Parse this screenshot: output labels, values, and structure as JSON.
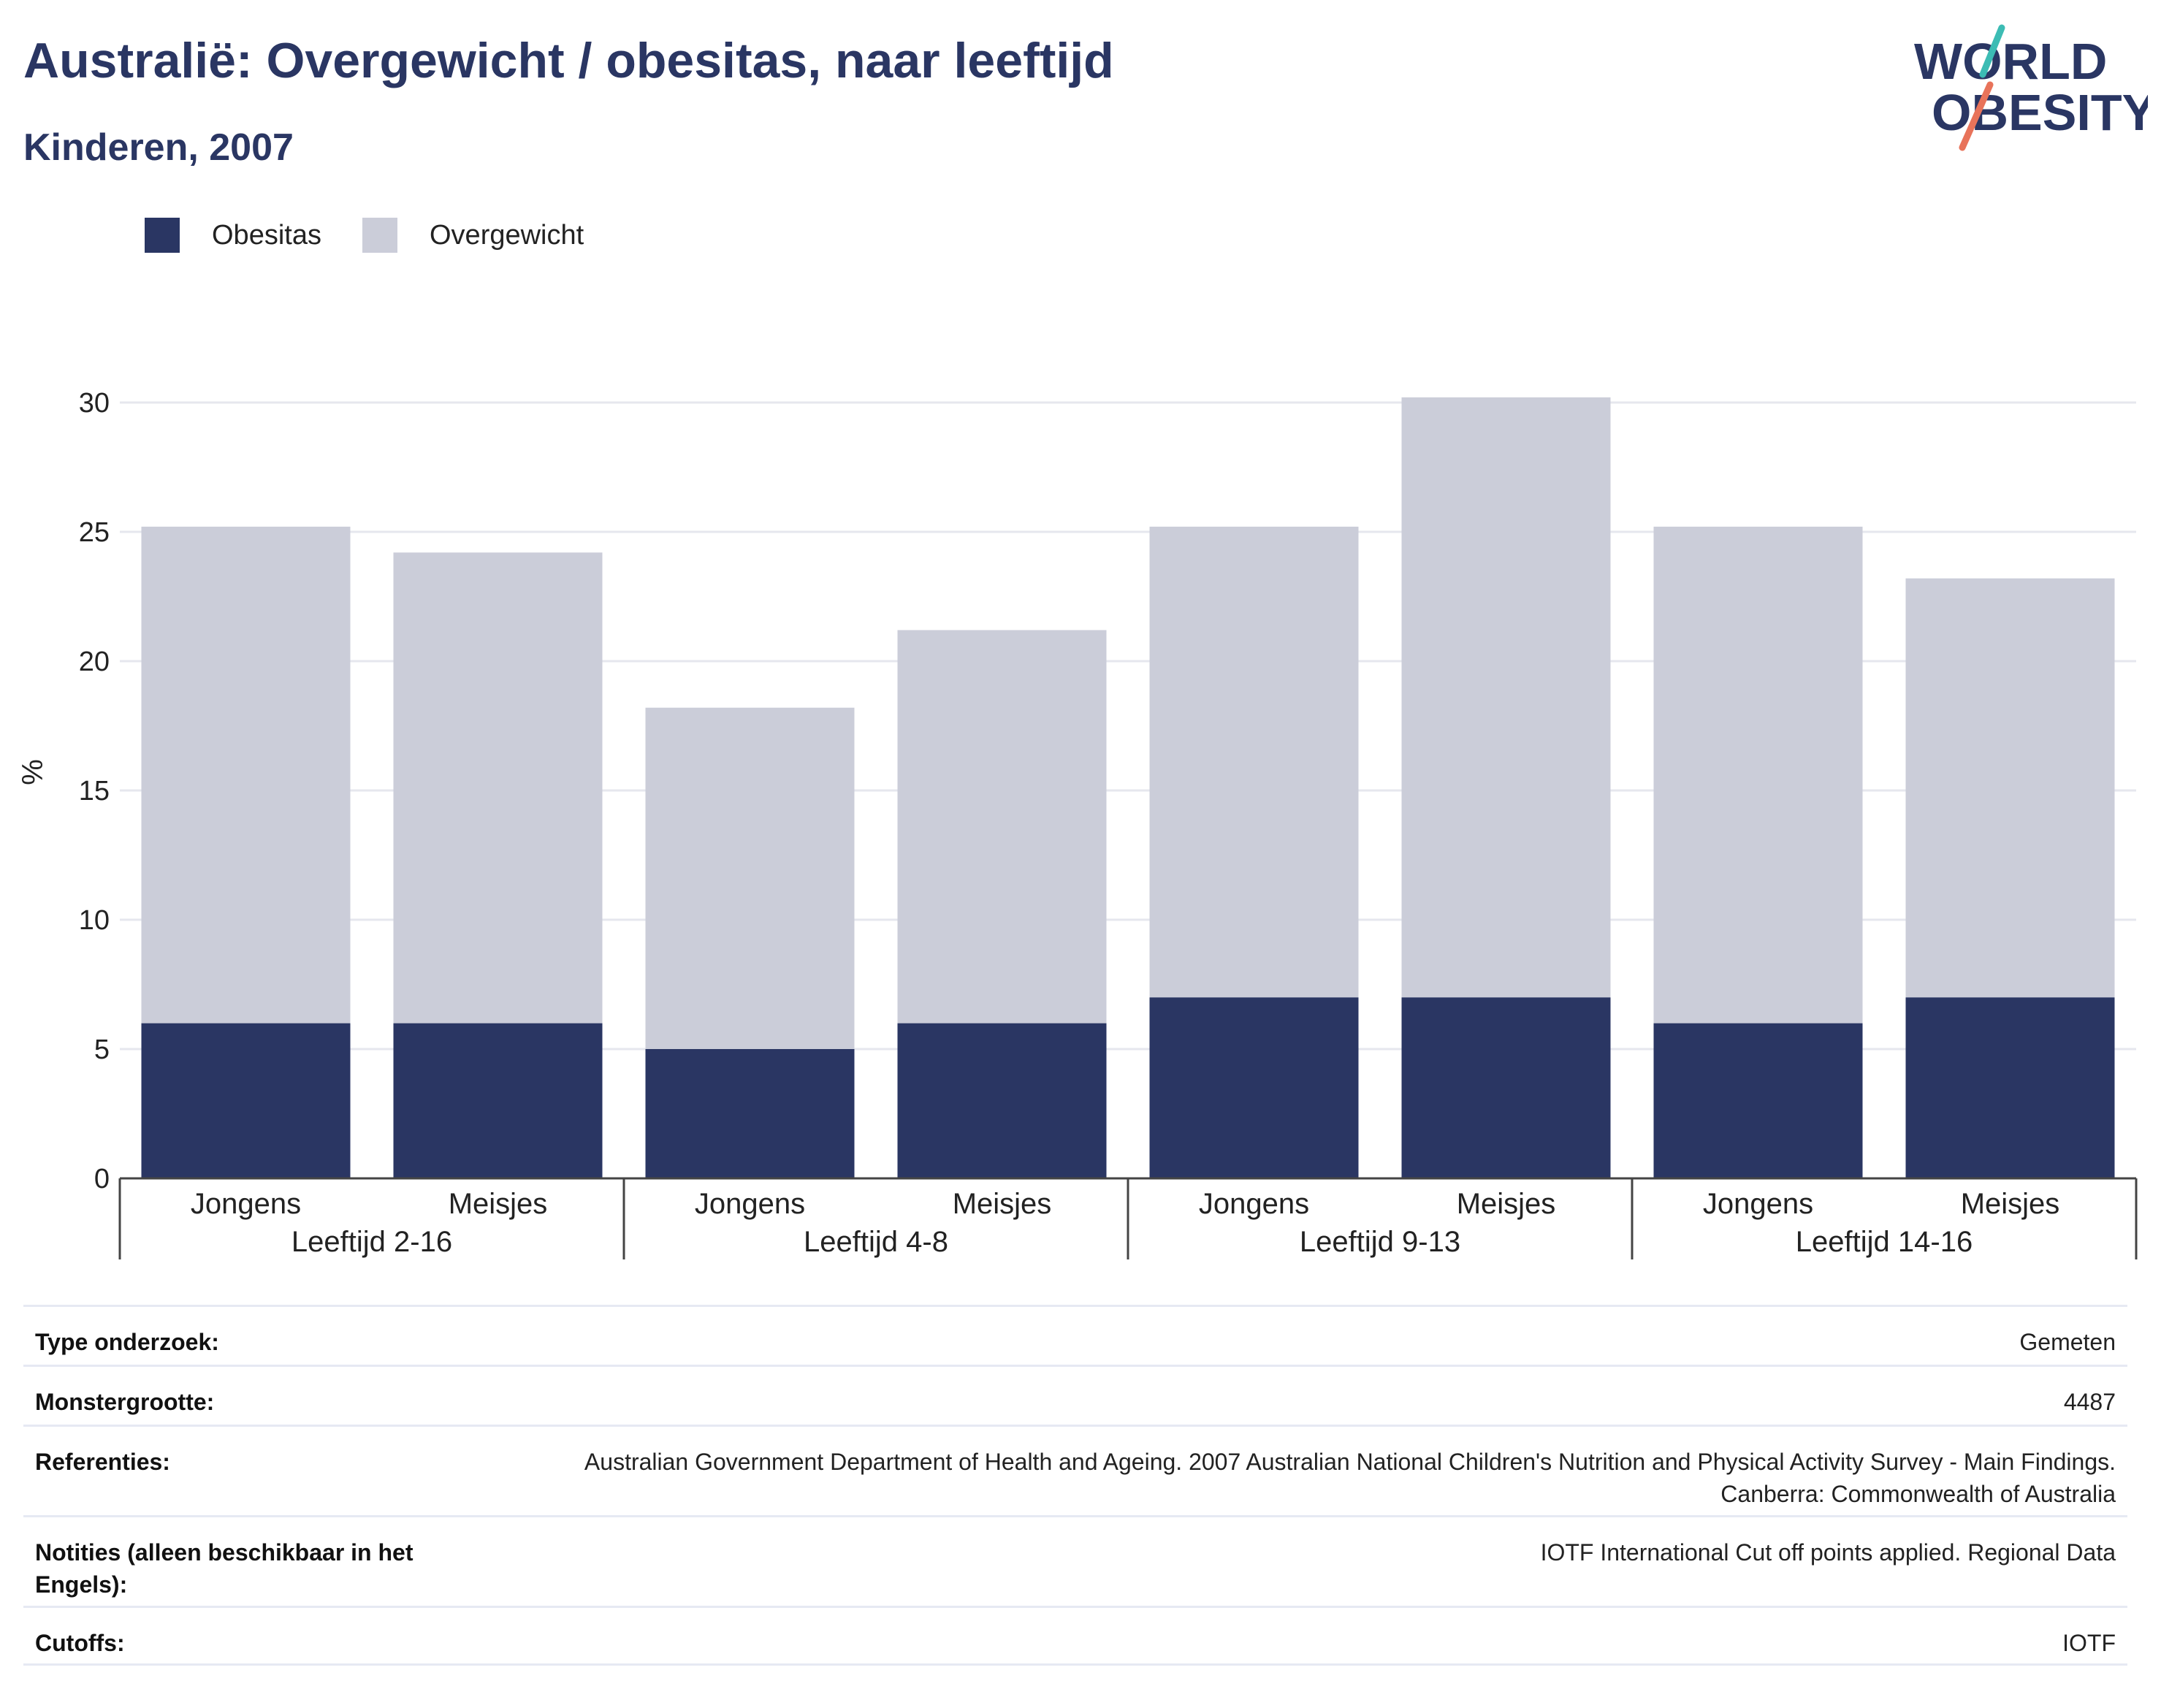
{
  "header": {
    "title": "Australië: Overgewicht / obesitas, naar leeftijd",
    "subtitle": "Kinderen, 2007"
  },
  "logo": {
    "line1": "WORLD",
    "line2": "OBESITY"
  },
  "colors": {
    "obesitas": "#2a3663",
    "overgewicht": "#cbcdd9",
    "title": "#2a3663",
    "grid": "#e6e7ee",
    "logo_teal": "#3cbcb4",
    "logo_coral": "#e8735a"
  },
  "legend": {
    "items": [
      {
        "label": "Obesitas",
        "color": "#2a3663"
      },
      {
        "label": "Overgewicht",
        "color": "#cbcdd9"
      }
    ]
  },
  "chart_data": {
    "type": "bar",
    "stacked": true,
    "ylabel": "%",
    "ylim": [
      0,
      32
    ],
    "yticks": [
      0,
      5,
      10,
      15,
      20,
      25,
      30
    ],
    "grid": true,
    "legend_position": "top-left",
    "groups": [
      "Leeftijd 2-16",
      "Leeftijd 4-8",
      "Leeftijd 9-13",
      "Leeftijd 14-16"
    ],
    "categories": [
      "Jongens",
      "Meisjes",
      "Jongens",
      "Meisjes",
      "Jongens",
      "Meisjes",
      "Jongens",
      "Meisjes"
    ],
    "series": [
      {
        "name": "Obesitas",
        "values": [
          6,
          6,
          5,
          6,
          7,
          7,
          6,
          7
        ]
      },
      {
        "name": "Overgewicht",
        "values": [
          19.2,
          18.2,
          13.2,
          15.2,
          18.2,
          23.2,
          19.2,
          16.2
        ]
      }
    ]
  },
  "info": {
    "rows": [
      {
        "key": "Type onderzoek:",
        "value": "Gemeten"
      },
      {
        "key": "Monstergrootte:",
        "value": "4487"
      },
      {
        "key": "Referenties:",
        "value": "Australian Government Department of Health and Ageing. 2007 Australian National Children's Nutrition and Physical Activity Survey - Main Findings. Canberra: Commonwealth of Australia"
      },
      {
        "key": "Notities (alleen beschikbaar in het Engels):",
        "value": "IOTF International Cut off points applied. Regional Data"
      },
      {
        "key": "Cutoffs:",
        "value": "IOTF"
      }
    ]
  }
}
